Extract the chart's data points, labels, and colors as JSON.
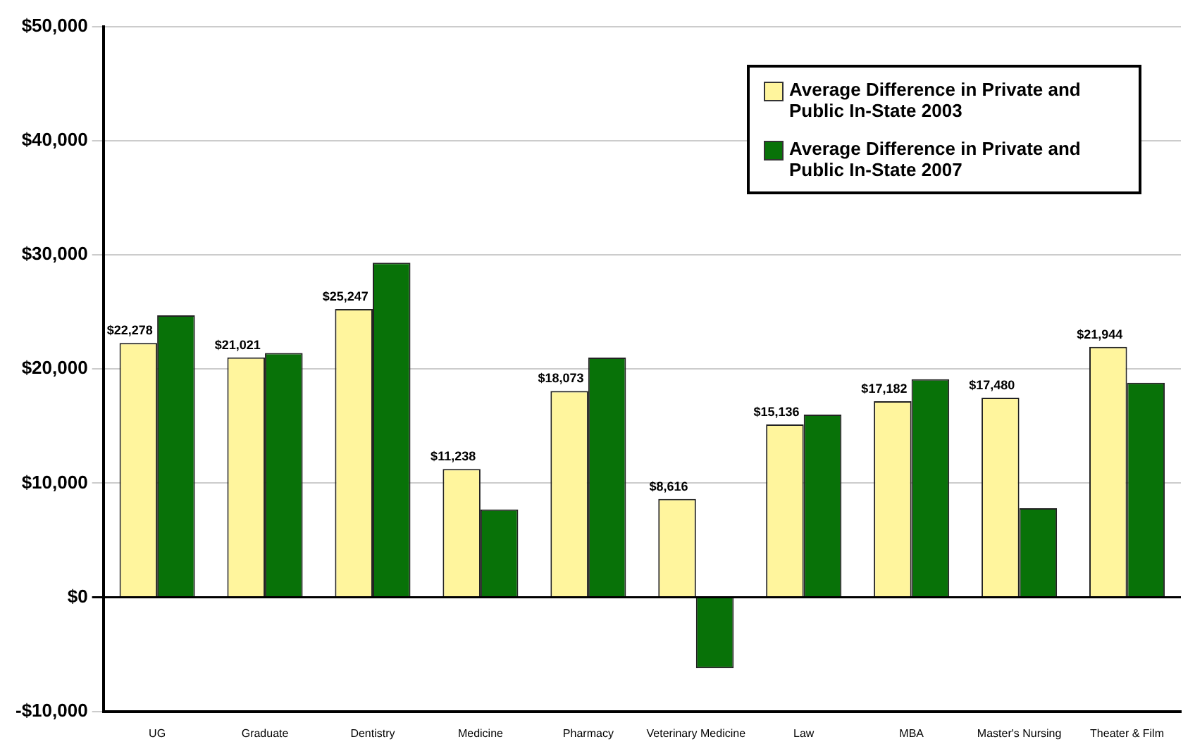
{
  "chart_data": {
    "type": "bar",
    "categories": [
      "UG",
      "Graduate",
      "Dentistry",
      "Medicine",
      "Pharmacy",
      "Veterinary Medicine",
      "Law",
      "MBA",
      "Master's Nursing",
      "Theater & Film"
    ],
    "series": [
      {
        "name": "Average Difference in Private and Public In-State 2003",
        "color": "#fff59d",
        "values": [
          22278,
          21021,
          25247,
          11238,
          18073,
          8616,
          15136,
          17182,
          17480,
          21944
        ],
        "value_labels": [
          "$22,278",
          "$21,021",
          "$25,247",
          "$11,238",
          "$18,073",
          "$8,616",
          "$15,136",
          "$17,182",
          "$17,480",
          "$21,944"
        ]
      },
      {
        "name": "Average Difference in Private and Public In-State 2007",
        "color": "#087208",
        "values": [
          24700,
          21400,
          29300,
          7700,
          21000,
          -6200,
          16000,
          19100,
          7800,
          18800
        ]
      }
    ],
    "ylim": [
      -10000,
      50000
    ],
    "yticks": [
      {
        "value": -10000,
        "label": "-$10,000"
      },
      {
        "value": 0,
        "label": "$0"
      },
      {
        "value": 10000,
        "label": "$10,000"
      },
      {
        "value": 20000,
        "label": "$20,000"
      },
      {
        "value": 30000,
        "label": "$30,000"
      },
      {
        "value": 40000,
        "label": "$40,000"
      },
      {
        "value": 50000,
        "label": "$50,000"
      }
    ],
    "grid": "y",
    "legend": "top right"
  }
}
